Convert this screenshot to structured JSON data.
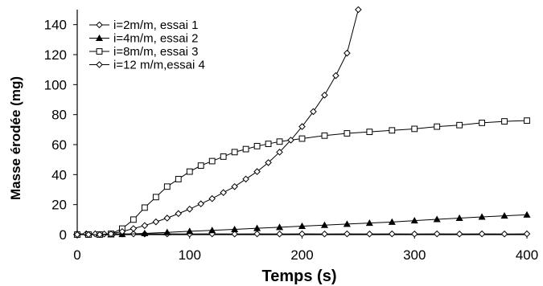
{
  "chart_data": {
    "type": "scatter",
    "xlabel": "Temps (s)",
    "ylabel": "Masse érodée (mg)",
    "xlim": [
      0,
      400
    ],
    "ylim": [
      0,
      150
    ],
    "xticks": [
      "0",
      "100",
      "200",
      "300",
      "400"
    ],
    "yticks": [
      "0",
      "20",
      "40",
      "60",
      "80",
      "100",
      "120",
      "140"
    ],
    "grid": false,
    "legend": "top-left",
    "series": [
      {
        "name": "i=2m/m, essai 1",
        "marker": "diamond-open",
        "x": [
          0,
          8,
          16,
          24,
          32,
          40,
          50,
          60,
          80,
          100,
          120,
          140,
          160,
          180,
          200,
          220,
          240,
          260,
          280,
          300,
          320,
          340,
          360,
          380,
          400
        ],
        "y": [
          0.5,
          0.5,
          0.5,
          0.4,
          0.5,
          0.4,
          0.5,
          0.4,
          0.5,
          0.4,
          0.5,
          0.4,
          0.5,
          0.4,
          0.5,
          0.4,
          0.5,
          0.4,
          0.5,
          0.4,
          0.5,
          0.4,
          0.5,
          0.4,
          0.5
        ]
      },
      {
        "name": "i=4m/m, essai 2",
        "marker": "triangle-filled",
        "x": [
          0,
          10,
          20,
          30,
          40,
          60,
          80,
          100,
          120,
          140,
          160,
          180,
          200,
          220,
          240,
          260,
          280,
          300,
          320,
          340,
          360,
          380,
          400
        ],
        "y": [
          0,
          0,
          0,
          0,
          0.2,
          0.8,
          1.5,
          2.2,
          2.8,
          3.5,
          4.2,
          4.9,
          5.6,
          6.3,
          7.0,
          7.7,
          8.4,
          9.3,
          10.2,
          11.0,
          11.8,
          12.5,
          13.2
        ]
      },
      {
        "name": "i=8m/m, essai 3",
        "marker": "square-open",
        "x": [
          0,
          10,
          20,
          30,
          40,
          50,
          60,
          70,
          80,
          90,
          100,
          110,
          120,
          130,
          140,
          150,
          160,
          170,
          180,
          200,
          220,
          240,
          260,
          280,
          300,
          320,
          340,
          360,
          380,
          400
        ],
        "y": [
          0,
          0,
          0,
          0.5,
          4,
          10,
          18,
          25,
          32,
          37,
          42,
          46,
          49,
          52,
          55,
          57,
          59,
          60.5,
          62,
          64,
          66,
          67.5,
          68.5,
          69.5,
          70.5,
          72,
          73,
          74.5,
          75.5,
          76
        ]
      },
      {
        "name": "i=12 m/m,essai 4",
        "marker": "diamond-open",
        "x": [
          0,
          10,
          20,
          30,
          40,
          50,
          60,
          70,
          80,
          90,
          100,
          110,
          120,
          130,
          140,
          150,
          160,
          170,
          180,
          190,
          200,
          210,
          220,
          230,
          240,
          250
        ],
        "y": [
          0,
          0,
          0,
          0.5,
          2,
          4,
          6,
          8.5,
          11,
          14,
          17,
          20.5,
          24,
          28,
          32,
          37,
          42,
          48,
          55,
          63,
          72,
          82,
          93,
          106,
          121,
          150
        ]
      }
    ]
  }
}
